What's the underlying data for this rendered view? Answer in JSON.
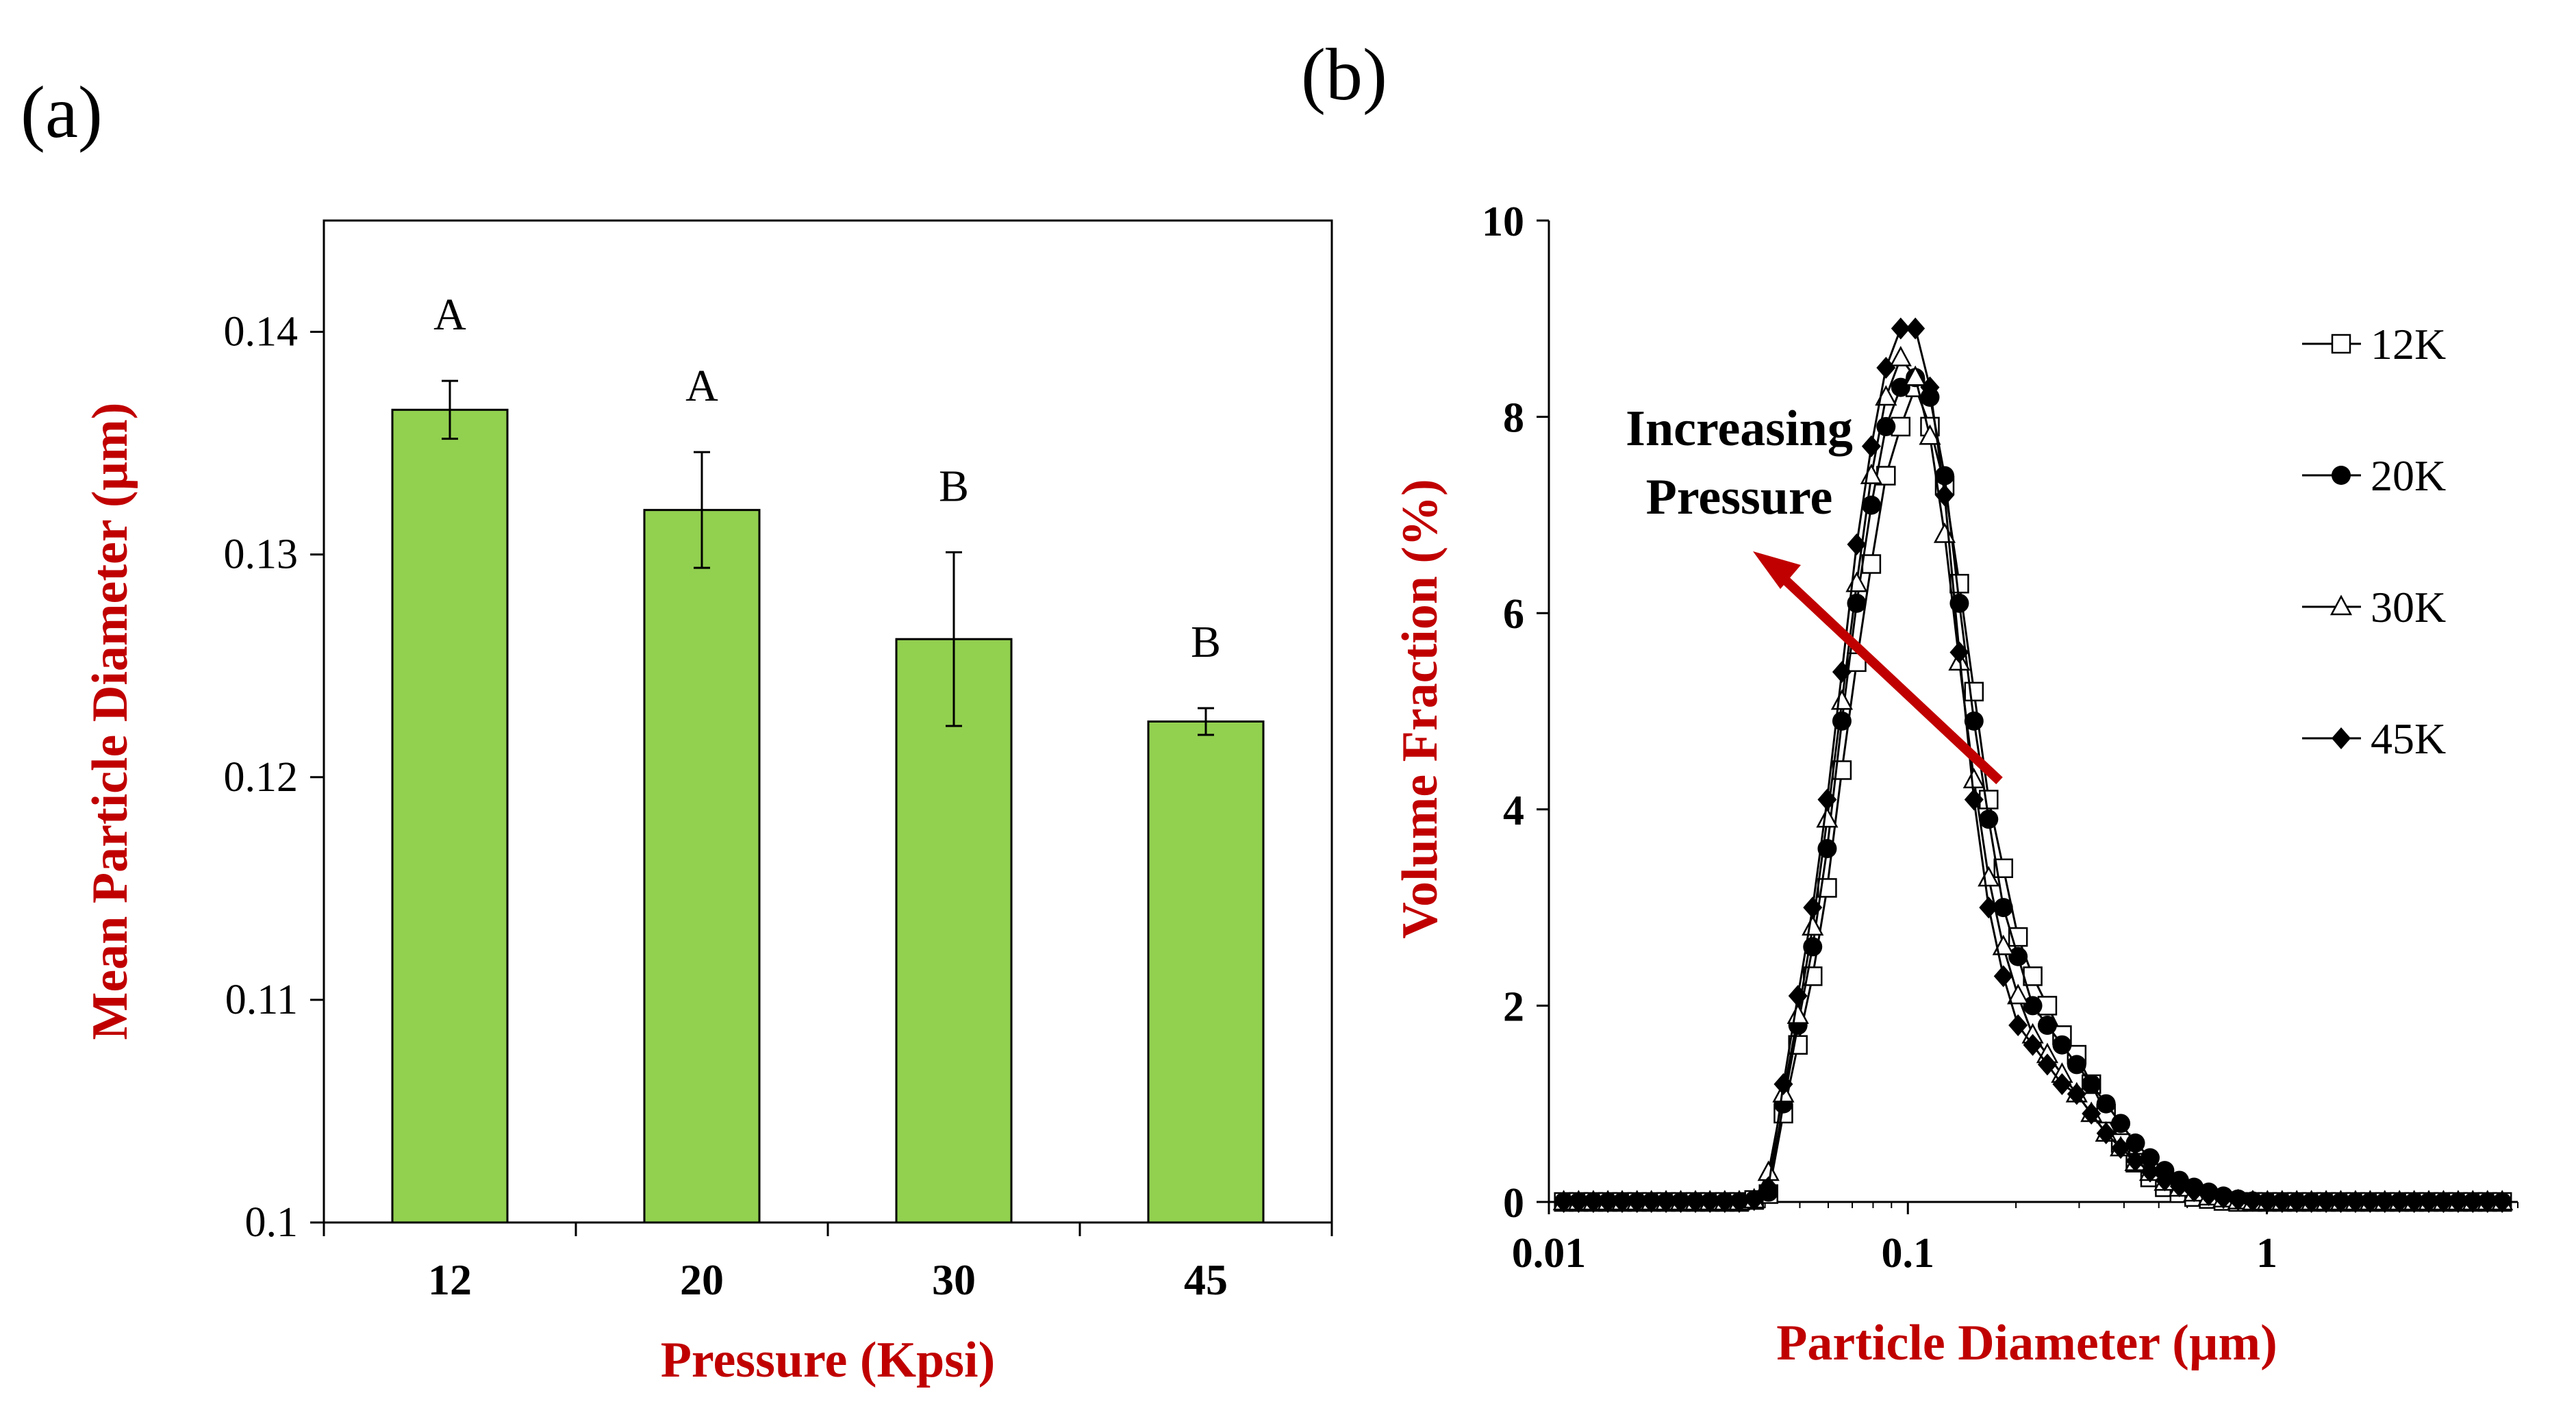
{
  "panels": {
    "a": "(a)",
    "b": "(b)"
  },
  "colors": {
    "bar_fill": "#92d050",
    "label_red": "#c00000",
    "arrow": "#c00000",
    "line": "#000000"
  },
  "chart_data": [
    {
      "type": "bar",
      "panel": "(a)",
      "categories": [
        "12",
        "20",
        "30",
        "45"
      ],
      "values": [
        0.1365,
        0.132,
        0.1262,
        0.1225
      ],
      "errors": [
        0.0013,
        0.0026,
        0.0039,
        0.0006
      ],
      "significance": [
        "A",
        "A",
        "B",
        "B"
      ],
      "xlabel": "Pressure (Kpsi)",
      "ylabel": "Mean Particle Diameter (µm)",
      "ylim": [
        0.1,
        0.145
      ],
      "yticks": [
        0.1,
        0.11,
        0.12,
        0.13,
        0.14
      ],
      "ytick_labels": [
        "0.1",
        "0.11",
        "0.12",
        "0.13",
        "0.14"
      ]
    },
    {
      "type": "line",
      "panel": "(b)",
      "xscale": "log",
      "xlabel": "Particle Diameter (µm)",
      "ylabel": "Volume Fraction (%)",
      "xlim": [
        0.01,
        5.0
      ],
      "ylim": [
        0,
        10
      ],
      "xticks": [
        0.01,
        0.1,
        1
      ],
      "xtick_labels": [
        "0.01",
        "0.1",
        "1"
      ],
      "yticks": [
        0,
        2,
        4,
        6,
        8,
        10
      ],
      "ytick_labels": [
        "0",
        "2",
        "4",
        "6",
        "8",
        "10"
      ],
      "annotation": [
        "Increasing",
        "Pressure"
      ],
      "legend_position": "right",
      "x": [
        0.011,
        0.0121,
        0.0133,
        0.0146,
        0.016,
        0.0176,
        0.0193,
        0.0212,
        0.0233,
        0.0256,
        0.0281,
        0.0309,
        0.0339,
        0.0373,
        0.0409,
        0.045,
        0.0494,
        0.0543,
        0.0596,
        0.0655,
        0.072,
        0.0791,
        0.0869,
        0.0955,
        0.1049,
        0.1152,
        0.1266,
        0.1391,
        0.1528,
        0.1679,
        0.1845,
        0.2027,
        0.2227,
        0.2446,
        0.2688,
        0.2953,
        0.3244,
        0.3565,
        0.3916,
        0.4303,
        0.4728,
        0.5194,
        0.5706,
        0.6269,
        0.6888,
        0.7568,
        0.8315,
        0.9135,
        1.0036,
        1.1027,
        1.2115,
        1.331,
        1.4624,
        1.6067,
        1.7652,
        1.9393,
        2.1307,
        2.341,
        2.572,
        2.8258,
        3.1046,
        3.4109,
        3.7474,
        4.1172,
        4.5234
      ],
      "series": [
        {
          "name": "12K",
          "marker": "square-open",
          "values": [
            0,
            0,
            0,
            0,
            0,
            0,
            0,
            0,
            0,
            0,
            0,
            0,
            0,
            0.02,
            0.08,
            0.9,
            1.6,
            2.3,
            3.2,
            4.4,
            5.5,
            6.5,
            7.4,
            7.9,
            8.3,
            7.9,
            7.3,
            6.3,
            5.2,
            4.1,
            3.4,
            2.7,
            2.3,
            2.0,
            1.7,
            1.5,
            1.2,
            0.9,
            0.6,
            0.4,
            0.25,
            0.15,
            0.09,
            0.05,
            0.03,
            0.01,
            0,
            0,
            0,
            0,
            0,
            0,
            0,
            0,
            0,
            0,
            0,
            0,
            0,
            0,
            0,
            0,
            0,
            0,
            0
          ]
        },
        {
          "name": "20K",
          "marker": "circle-filled",
          "values": [
            0,
            0,
            0,
            0,
            0,
            0,
            0,
            0,
            0,
            0,
            0,
            0,
            0,
            0.02,
            0.1,
            1.0,
            1.8,
            2.6,
            3.6,
            4.9,
            6.1,
            7.1,
            7.9,
            8.3,
            8.4,
            8.2,
            7.4,
            6.1,
            4.9,
            3.9,
            3.0,
            2.5,
            2.0,
            1.8,
            1.6,
            1.4,
            1.2,
            1.0,
            0.8,
            0.6,
            0.45,
            0.32,
            0.22,
            0.15,
            0.1,
            0.06,
            0.03,
            0.01,
            0,
            0,
            0,
            0,
            0,
            0,
            0,
            0,
            0,
            0,
            0,
            0,
            0,
            0,
            0,
            0,
            0
          ]
        },
        {
          "name": "30K",
          "marker": "triangle-open",
          "values": [
            0,
            0,
            0,
            0,
            0,
            0,
            0,
            0,
            0,
            0,
            0,
            0,
            0,
            0.02,
            0.3,
            1.1,
            1.9,
            2.8,
            3.9,
            5.1,
            6.3,
            7.4,
            8.2,
            8.6,
            8.4,
            7.8,
            6.8,
            5.5,
            4.3,
            3.3,
            2.6,
            2.1,
            1.7,
            1.5,
            1.3,
            1.1,
            0.9,
            0.7,
            0.55,
            0.4,
            0.3,
            0.2,
            0.14,
            0.09,
            0.05,
            0.03,
            0.01,
            0,
            0,
            0,
            0,
            0,
            0,
            0,
            0,
            0,
            0,
            0,
            0,
            0,
            0,
            0,
            0,
            0,
            0
          ]
        },
        {
          "name": "45K",
          "marker": "diamond-filled",
          "values": [
            0,
            0,
            0,
            0,
            0,
            0,
            0,
            0,
            0,
            0,
            0,
            0,
            0,
            0.02,
            0.15,
            1.2,
            2.1,
            3.0,
            4.1,
            5.4,
            6.7,
            7.7,
            8.5,
            8.9,
            8.9,
            8.3,
            7.2,
            5.6,
            4.1,
            3.0,
            2.3,
            1.8,
            1.6,
            1.4,
            1.2,
            1.1,
            0.9,
            0.7,
            0.55,
            0.42,
            0.31,
            0.22,
            0.16,
            0.11,
            0.07,
            0.04,
            0.02,
            0.01,
            0,
            0,
            0,
            0,
            0,
            0,
            0,
            0,
            0,
            0,
            0,
            0,
            0,
            0,
            0,
            0,
            0
          ]
        }
      ]
    }
  ]
}
